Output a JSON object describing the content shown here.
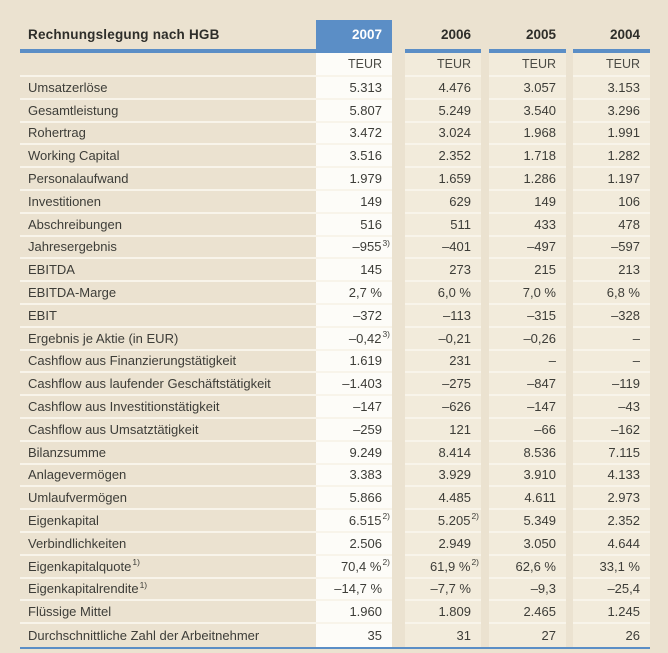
{
  "colors": {
    "accent_blue": "#5b8ec6",
    "page_background": "#ebe2d0",
    "highlight_column_background": "#fdfcf8",
    "year_column_background": "#f2ebdb",
    "row_separator": "#f8f4ea",
    "text": "#3d3d38"
  },
  "header": {
    "title": "Rechnungslegung nach HGB",
    "years": [
      "2007",
      "2006",
      "2005",
      "2004"
    ],
    "highlighted_year": "2007",
    "unit_label": "TEUR"
  },
  "table": {
    "note": "values use ^ to attach footnote markers shown as superscripts",
    "rows": [
      {
        "label": "Umsatzerlöse",
        "values": [
          "5.313",
          "4.476",
          "3.057",
          "3.153"
        ]
      },
      {
        "label": "Gesamtleistung",
        "values": [
          "5.807",
          "5.249",
          "3.540",
          "3.296"
        ]
      },
      {
        "label": "Rohertrag",
        "values": [
          "3.472",
          "3.024",
          "1.968",
          "1.991"
        ]
      },
      {
        "label": "Working Capital",
        "values": [
          "3.516",
          "2.352",
          "1.718",
          "1.282"
        ]
      },
      {
        "label": "Personalaufwand",
        "values": [
          "1.979",
          "1.659",
          "1.286",
          "1.197"
        ]
      },
      {
        "label": "Investitionen",
        "values": [
          "149",
          "629",
          "149",
          "106"
        ]
      },
      {
        "label": "Abschreibungen",
        "values": [
          "516",
          "511",
          "433",
          "478"
        ]
      },
      {
        "label": "Jahresergebnis",
        "values": [
          "–955^3)",
          "–401",
          "–497",
          "–597"
        ]
      },
      {
        "label": "EBITDA",
        "values": [
          "145",
          "273",
          "215",
          "213"
        ]
      },
      {
        "label": "EBITDA-Marge",
        "values": [
          "2,7 %",
          "6,0 %",
          "7,0 %",
          "6,8 %"
        ]
      },
      {
        "label": "EBIT",
        "values": [
          "–372",
          "–113",
          "–315",
          "–328"
        ]
      },
      {
        "label": "Ergebnis je Aktie (in EUR)",
        "values": [
          "–0,42^3)",
          "–0,21",
          "–0,26",
          "–"
        ]
      },
      {
        "label": "Cashflow aus Finanzierungstätigkeit",
        "values": [
          "1.619",
          "231",
          "–",
          "–"
        ]
      },
      {
        "label": "Cashflow aus laufender Geschäftstätigkeit",
        "values": [
          "–1.403",
          "–275",
          "–847",
          "–119"
        ]
      },
      {
        "label": "Cashflow aus Investitionstätigkeit",
        "values": [
          "–147",
          "–626",
          "–147",
          "–43"
        ]
      },
      {
        "label": "Cashflow aus Umsatztätigkeit",
        "values": [
          "–259",
          "121",
          "–66",
          "–162"
        ]
      },
      {
        "label": "Bilanzsumme",
        "values": [
          "9.249",
          "8.414",
          "8.536",
          "7.115"
        ]
      },
      {
        "label": "Anlagevermögen",
        "values": [
          "3.383",
          "3.929",
          "3.910",
          "4.133"
        ]
      },
      {
        "label": "Umlaufvermögen",
        "values": [
          "5.866",
          "4.485",
          "4.611",
          "2.973"
        ]
      },
      {
        "label": "Eigenkapital",
        "values": [
          "6.515^2)",
          "5.205^2)",
          "5.349",
          "2.352"
        ]
      },
      {
        "label": "Verbindlichkeiten",
        "values": [
          "2.506",
          "2.949",
          "3.050",
          "4.644"
        ]
      },
      {
        "label": "Eigenkapitalquote^1)",
        "values": [
          "70,4 %^2)",
          "61,9 %^2)",
          "62,6 %",
          "33,1 %"
        ]
      },
      {
        "label": "Eigenkapitalrendite^1)",
        "values": [
          "–14,7 %",
          "–7,7 %",
          "–9,3",
          "–25,4"
        ]
      },
      {
        "label": "Flüssige Mittel",
        "values": [
          "1.960",
          "1.809",
          "2.465",
          "1.245"
        ]
      },
      {
        "label": "Durchschnittliche Zahl der Arbeitnehmer",
        "values": [
          "35",
          "31",
          "27",
          "26"
        ]
      }
    ]
  }
}
